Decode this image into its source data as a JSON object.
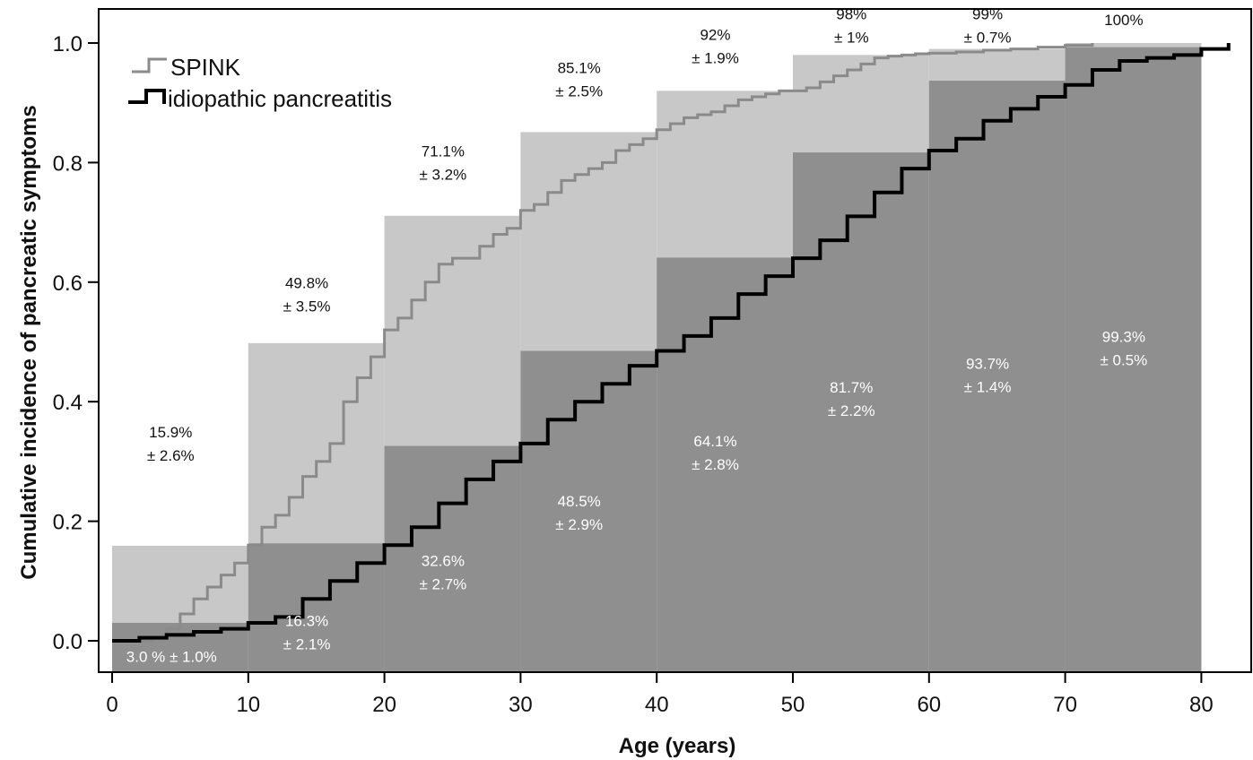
{
  "chart_data": {
    "type": "bar",
    "xlabel": "Age (years)",
    "ylabel": "Cumulative incidence of pancreatic symptoms",
    "xlim": [
      0,
      82
    ],
    "ylim": [
      0,
      1.0
    ],
    "x_ticks": [
      0,
      10,
      20,
      30,
      40,
      50,
      60,
      70,
      80
    ],
    "y_ticks": [
      "0.0",
      "0.2",
      "0.4",
      "0.6",
      "0.8",
      "1.0"
    ],
    "legend": {
      "placement": "top-left",
      "entries": [
        "SPINK",
        "idiopathic pancreatitis"
      ]
    },
    "colors": {
      "spink_bar": "#c8c8c8",
      "idiopathic_bar": "#8f8f8f",
      "spink_line": "#8a8a8a",
      "idiopathic_line": "#000000",
      "spink_text": "#111111",
      "idiopathic_text": "#ffffff"
    },
    "categories": [
      "0-10",
      "10-20",
      "20-30",
      "30-40",
      "40-50",
      "50-60",
      "60-70",
      "70-80"
    ],
    "series": [
      {
        "name": "SPINK",
        "values": [
          0.159,
          0.498,
          0.711,
          0.851,
          0.92,
          0.98,
          0.99,
          1.0
        ],
        "labels": [
          [
            "15.9%",
            "± 2.6%"
          ],
          [
            "49.8%",
            "± 3.5%"
          ],
          [
            "71.1%",
            "± 3.2%"
          ],
          [
            "85.1%",
            "± 2.5%"
          ],
          [
            "92%",
            "± 1.9%"
          ],
          [
            "98%",
            "± 1%"
          ],
          [
            "99%",
            "± 0.7%"
          ],
          [
            "100%"
          ]
        ]
      },
      {
        "name": "idiopathic pancreatitis",
        "values": [
          0.03,
          0.163,
          0.326,
          0.485,
          0.641,
          0.817,
          0.937,
          0.993
        ],
        "labels": [
          [
            "3.0 % ± 1.0%"
          ],
          [
            "16.3%",
            "± 2.1%"
          ],
          [
            "32.6%",
            "± 2.7%"
          ],
          [
            "48.5%",
            "± 2.9%"
          ],
          [
            "64.1%",
            "± 2.8%"
          ],
          [
            "81.7%",
            "± 2.2%"
          ],
          [
            "93.7%",
            "± 1.4%"
          ],
          [
            "99.3%",
            "± 0.5%"
          ]
        ]
      }
    ],
    "curves": [
      {
        "name": "SPINK",
        "x": [
          0,
          2,
          3,
          4,
          5,
          6,
          7,
          8,
          9,
          10,
          11,
          12,
          13,
          14,
          15,
          16,
          17,
          18,
          19,
          20,
          21,
          22,
          23,
          24,
          25,
          26,
          27,
          28,
          29,
          30,
          31,
          32,
          33,
          34,
          35,
          36,
          37,
          38,
          39,
          40,
          41,
          42,
          43,
          44,
          45,
          46,
          47,
          48,
          49,
          50,
          51,
          52,
          53,
          54,
          55,
          56,
          57,
          58,
          59,
          60,
          62,
          64,
          66,
          68,
          70,
          72
        ],
        "y": [
          0.0,
          0.0,
          0.005,
          0.02,
          0.045,
          0.07,
          0.09,
          0.11,
          0.13,
          0.16,
          0.19,
          0.21,
          0.24,
          0.275,
          0.3,
          0.33,
          0.4,
          0.44,
          0.475,
          0.52,
          0.54,
          0.57,
          0.6,
          0.63,
          0.64,
          0.64,
          0.66,
          0.68,
          0.69,
          0.72,
          0.73,
          0.75,
          0.77,
          0.78,
          0.79,
          0.8,
          0.82,
          0.83,
          0.84,
          0.855,
          0.865,
          0.875,
          0.88,
          0.885,
          0.895,
          0.905,
          0.91,
          0.915,
          0.92,
          0.92,
          0.925,
          0.935,
          0.945,
          0.955,
          0.965,
          0.975,
          0.978,
          0.98,
          0.982,
          0.983,
          0.985,
          0.988,
          0.99,
          0.993,
          0.996,
          1.0
        ]
      },
      {
        "name": "idiopathic pancreatitis",
        "x": [
          0,
          2,
          4,
          6,
          8,
          10,
          12,
          14,
          16,
          18,
          20,
          22,
          24,
          26,
          28,
          30,
          32,
          34,
          36,
          38,
          40,
          42,
          44,
          46,
          48,
          50,
          52,
          54,
          56,
          58,
          60,
          62,
          64,
          66,
          68,
          70,
          72,
          74,
          76,
          78,
          80,
          82
        ],
        "y": [
          0.0,
          0.005,
          0.01,
          0.015,
          0.02,
          0.03,
          0.04,
          0.07,
          0.1,
          0.13,
          0.16,
          0.19,
          0.23,
          0.27,
          0.3,
          0.33,
          0.37,
          0.4,
          0.43,
          0.46,
          0.485,
          0.51,
          0.54,
          0.58,
          0.61,
          0.64,
          0.67,
          0.71,
          0.75,
          0.79,
          0.82,
          0.84,
          0.87,
          0.89,
          0.91,
          0.93,
          0.955,
          0.97,
          0.975,
          0.98,
          0.99,
          1.0
        ]
      }
    ]
  }
}
